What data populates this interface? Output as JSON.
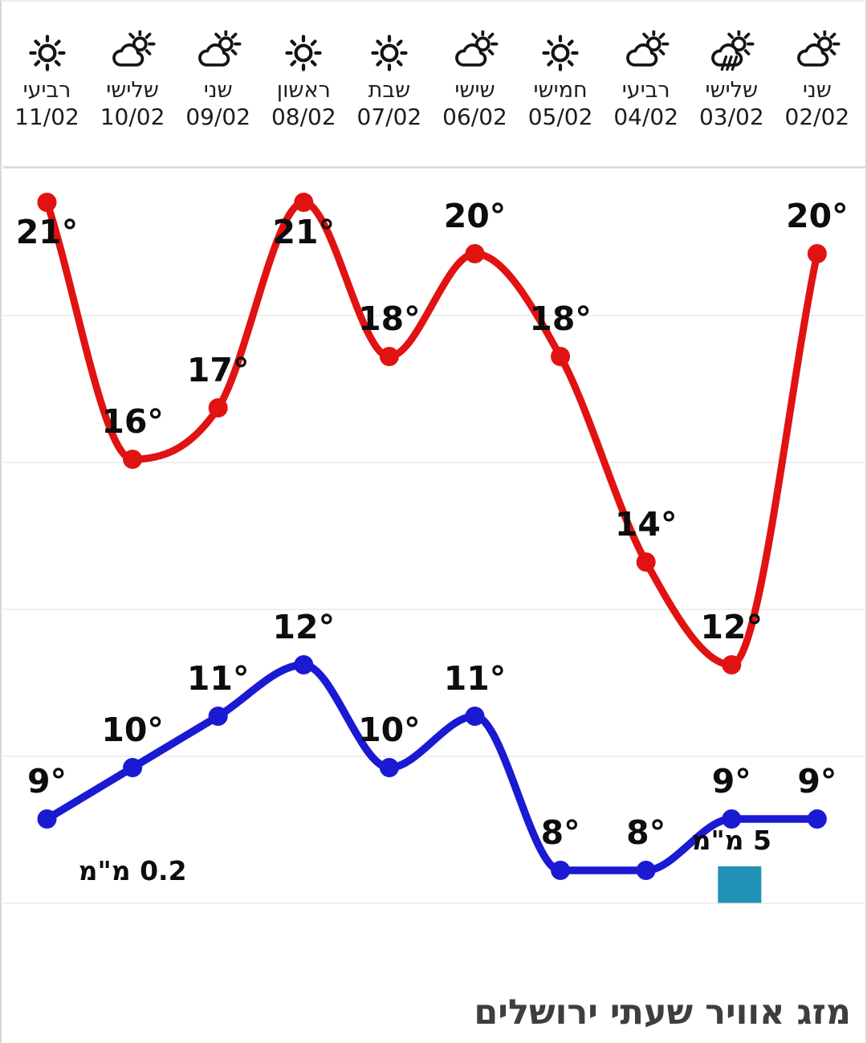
{
  "title": "מזג אוויר שעתי ירושלים",
  "colors": {
    "high_line": "#e11212",
    "low_line": "#1a1ad2",
    "precip_bar": "#2191b5",
    "grid": "#eaeaea",
    "header_divider": "#d8d8d8",
    "label_text": "#0d0d0d",
    "title_text": "#3e3e3e"
  },
  "chart_data": {
    "type": "line",
    "title": "מזג אוויר שעתי ירושלים",
    "unit": "°",
    "direction": "rtl",
    "grid": true,
    "categories": [
      {
        "day": "רביעי",
        "date": "11/02",
        "icon": "sun-icon"
      },
      {
        "day": "שלישי",
        "date": "10/02",
        "icon": "sun-cloud-icon"
      },
      {
        "day": "שני",
        "date": "09/02",
        "icon": "sun-cloud-icon"
      },
      {
        "day": "ראשון",
        "date": "08/02",
        "icon": "sun-icon"
      },
      {
        "day": "שבת",
        "date": "07/02",
        "icon": "sun-icon"
      },
      {
        "day": "שישי",
        "date": "06/02",
        "icon": "sun-cloud-icon"
      },
      {
        "day": "חמישי",
        "date": "05/02",
        "icon": "sun-icon"
      },
      {
        "day": "רביעי",
        "date": "04/02",
        "icon": "sun-cloud-icon"
      },
      {
        "day": "שלישי",
        "date": "03/02",
        "icon": "rain-sun-cloud-icon"
      },
      {
        "day": "שני",
        "date": "02/02",
        "icon": "sun-cloud-icon"
      }
    ],
    "series": [
      {
        "name": "high",
        "color": "#e11212",
        "values": [
          21,
          16,
          17,
          21,
          18,
          20,
          18,
          14,
          12,
          20
        ],
        "label_pos": [
          "below",
          "above",
          "above",
          "below",
          "above",
          "above",
          "above",
          "above",
          "above",
          "above"
        ]
      },
      {
        "name": "low",
        "color": "#1a1ad2",
        "values": [
          9,
          10,
          11,
          12,
          10,
          11,
          8,
          8,
          9,
          9
        ],
        "label_pos": [
          "above",
          "above",
          "above",
          "above",
          "above",
          "above",
          "above",
          "above",
          "above",
          "above"
        ]
      }
    ],
    "annotations": [
      {
        "text": "0.2 מ\"מ",
        "column": 1,
        "bar": false
      },
      {
        "text": "5 מ\"מ",
        "column": 8,
        "bar": true,
        "bar_color": "#2191b5"
      }
    ]
  }
}
